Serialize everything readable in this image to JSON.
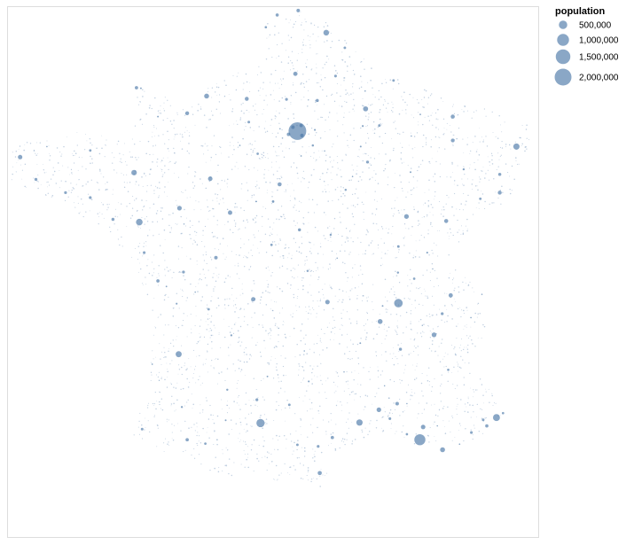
{
  "chart_data": {
    "type": "scatter",
    "title": "",
    "xlabel": "",
    "ylabel": "",
    "grid": false,
    "legend": {
      "placement": "top-right",
      "title": "population",
      "entries": [
        {
          "label": "500,000",
          "value": 500000
        },
        {
          "label": "1,000,000",
          "value": 1000000
        },
        {
          "label": "1,500,000",
          "value": 1500000
        },
        {
          "label": "2,000,000",
          "value": 2000000
        }
      ]
    },
    "point_color": "#4c78a8",
    "point_opacity": 0.65,
    "x_domain": [
      -4.8,
      8.3
    ],
    "y_domain": [
      41.4,
      51.1
    ],
    "fields": [
      "longitude",
      "latitude",
      "population"
    ],
    "cities": [
      [
        2.35,
        48.86,
        2200000
      ],
      [
        5.37,
        43.3,
        860000
      ],
      [
        4.84,
        45.76,
        515000
      ],
      [
        1.44,
        43.6,
        480000
      ],
      [
        7.26,
        43.7,
        340000
      ],
      [
        -1.55,
        47.22,
        310000
      ],
      [
        7.75,
        48.58,
        280000
      ],
      [
        3.88,
        43.61,
        285000
      ],
      [
        -0.58,
        44.84,
        255000
      ],
      [
        3.06,
        50.63,
        230000
      ],
      [
        -1.68,
        48.11,
        215000
      ],
      [
        4.03,
        49.26,
        180000
      ],
      [
        0.11,
        49.49,
        170000
      ],
      [
        4.39,
        45.43,
        170000
      ],
      [
        5.93,
        43.12,
        170000
      ],
      [
        5.72,
        45.19,
        160000
      ],
      [
        5.04,
        47.32,
        155000
      ],
      [
        -0.56,
        47.47,
        150000
      ],
      [
        4.36,
        43.84,
        150000
      ],
      [
        3.09,
        45.78,
        145000
      ],
      [
        0.2,
        48.0,
        142000
      ],
      [
        -4.49,
        48.39,
        140000
      ],
      [
        0.69,
        47.39,
        136000
      ],
      [
        1.26,
        45.83,
        133000
      ],
      [
        2.3,
        49.89,
        133000
      ],
      [
        6.02,
        47.24,
        117000
      ],
      [
        6.18,
        49.12,
        117000
      ],
      [
        2.9,
        42.7,
        120000
      ],
      [
        -1.09,
        46.16,
        77000
      ],
      [
        1.91,
        47.9,
        115000
      ],
      [
        1.1,
        49.44,
        111000
      ],
      [
        7.34,
        47.75,
        109000
      ],
      [
        -0.37,
        49.18,
        106000
      ],
      [
        6.18,
        48.69,
        105000
      ],
      [
        0.34,
        46.58,
        88000
      ],
      [
        4.81,
        43.95,
        90000
      ],
      [
        -0.37,
        43.3,
        77000
      ],
      [
        2.24,
        48.93,
        87000
      ],
      [
        -1.48,
        43.49,
        50000
      ],
      [
        4.84,
        46.78,
        45000
      ],
      [
        2.63,
        44.35,
        24000
      ],
      [
        3.17,
        46.99,
        33000
      ],
      [
        -2.76,
        47.66,
        56000
      ],
      [
        -3.37,
        47.75,
        57000
      ],
      [
        -2.76,
        48.51,
        44000
      ],
      [
        1.57,
        50.73,
        40000
      ],
      [
        2.37,
        51.03,
        87000
      ],
      [
        1.85,
        50.95,
        72000
      ],
      [
        3.52,
        50.36,
        47000
      ],
      [
        4.72,
        49.77,
        46000
      ],
      [
        3.29,
        49.85,
        54000
      ],
      [
        3.91,
        48.58,
        22000
      ],
      [
        4.08,
        48.3,
        61000
      ],
      [
        5.14,
        48.12,
        22000
      ],
      [
        6.45,
        48.17,
        31000
      ],
      [
        6.86,
        47.64,
        46000
      ],
      [
        7.34,
        48.08,
        69000
      ],
      [
        6.13,
        45.9,
        129000
      ],
      [
        5.92,
        45.57,
        59000
      ],
      [
        4.89,
        44.93,
        64000
      ],
      [
        6.07,
        44.56,
        39000
      ],
      [
        5.05,
        43.95,
        12000
      ],
      [
        6.64,
        43.43,
        53000
      ],
      [
        7.02,
        43.55,
        74000
      ],
      [
        1.61,
        44.44,
        20000
      ],
      [
        0.62,
        44.2,
        33000
      ],
      [
        1.35,
        44.02,
        57000
      ],
      [
        2.15,
        43.93,
        48000
      ],
      [
        2.35,
        43.21,
        47000
      ],
      [
        3.21,
        43.34,
        77000
      ],
      [
        0.08,
        43.23,
        42000
      ],
      [
        0.58,
        43.65,
        22000
      ],
      [
        -0.5,
        43.89,
        31000
      ],
      [
        0.72,
        45.18,
        30000
      ],
      [
        0.16,
        45.65,
        42000
      ],
      [
        -0.63,
        45.75,
        25000
      ],
      [
        -1.43,
        46.67,
        54000
      ],
      [
        -0.88,
        46.06,
        18000
      ],
      [
        -0.46,
        46.32,
        59000
      ],
      [
        0.93,
        48.6,
        15000
      ],
      [
        1.37,
        48.45,
        41000
      ],
      [
        1.15,
        49.02,
        50000
      ],
      [
        -1.62,
        49.64,
        80000
      ],
      [
        -1.09,
        49.12,
        19000
      ],
      [
        2.44,
        48.41,
        16000
      ],
      [
        2.08,
        49.43,
        56000
      ],
      [
        1.75,
        47.59,
        45000
      ],
      [
        1.33,
        47.59,
        17000
      ],
      [
        1.71,
        46.81,
        44000
      ],
      [
        2.4,
        47.08,
        66000
      ],
      [
        3.33,
        46.57,
        13000
      ],
      [
        2.6,
        46.34,
        34000
      ],
      [
        4.45,
        45.71,
        21000
      ],
      [
        4.83,
        46.31,
        34000
      ],
      [
        5.23,
        46.2,
        41000
      ],
      [
        5.55,
        46.67,
        24000
      ],
      [
        3.54,
        47.8,
        34000
      ],
      [
        4.02,
        49.58,
        15000
      ],
      [
        5.38,
        49.16,
        18000
      ],
      [
        5.16,
        48.77,
        14000
      ],
      [
        2.52,
        44.9,
        13000
      ],
      [
        3.9,
        45.04,
        19000
      ],
      [
        3.5,
        44.52,
        12000
      ],
      [
        -1.51,
        49.63,
        20000
      ],
      [
        -3.83,
        48.58,
        14000
      ],
      [
        -4.1,
        47.99,
        63000
      ],
      [
        -2.2,
        47.27,
        68000
      ],
      [
        -0.17,
        45.96,
        13000
      ],
      [
        -1.23,
        44.66,
        15000
      ],
      [
        -1.06,
        44.37,
        8000
      ],
      [
        0.37,
        43.3,
        10000
      ],
      [
        2.86,
        43.18,
        55000
      ],
      [
        4.63,
        43.68,
        53000
      ],
      [
        5.45,
        43.53,
        145000
      ],
      [
        5.05,
        43.4,
        40000
      ],
      [
        5.8,
        43.55,
        12000
      ],
      [
        6.35,
        43.22,
        15000
      ],
      [
        6.93,
        43.66,
        50000
      ],
      [
        7.42,
        43.78,
        40000
      ],
      [
        6.9,
        45.92,
        13000
      ],
      [
        6.63,
        45.5,
        15000
      ],
      [
        5.43,
        45.36,
        11000
      ],
      [
        4.5,
        44.27,
        12000
      ],
      [
        4.61,
        44.05,
        11000
      ],
      [
        3.71,
        48.04,
        14000
      ],
      [
        2.73,
        48.6,
        35000
      ],
      [
        2.44,
        48.96,
        80000
      ],
      [
        2.78,
        48.88,
        25000
      ],
      [
        2.13,
        48.8,
        85000
      ],
      [
        2.46,
        48.78,
        89000
      ],
      [
        1.92,
        48.9,
        14000
      ],
      [
        3.02,
        48.5,
        12000
      ],
      [
        2.62,
        49.42,
        11000
      ],
      [
        2.84,
        49.41,
        68000
      ],
      [
        3.96,
        48.95,
        27000
      ],
      [
        4.37,
        48.96,
        45000
      ]
    ]
  }
}
